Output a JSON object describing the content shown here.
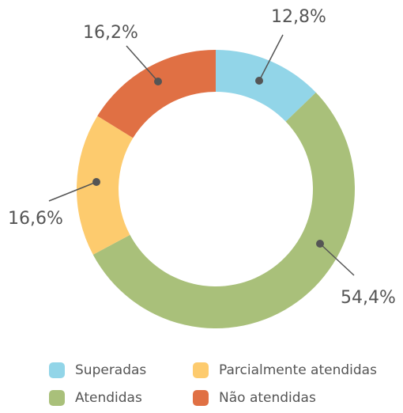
{
  "chart_data": {
    "type": "donut",
    "categories": [
      "Superadas",
      "Atendidas",
      "Parcialmente atendidas",
      "Não atendidas"
    ],
    "values": [
      12.8,
      54.4,
      16.6,
      16.2
    ],
    "value_labels": [
      "12,8%",
      "54,4%",
      "16,6%",
      "16,2%"
    ],
    "colors": [
      "#92d5e8",
      "#a9c07a",
      "#fdcb6e",
      "#e07044"
    ]
  }
}
